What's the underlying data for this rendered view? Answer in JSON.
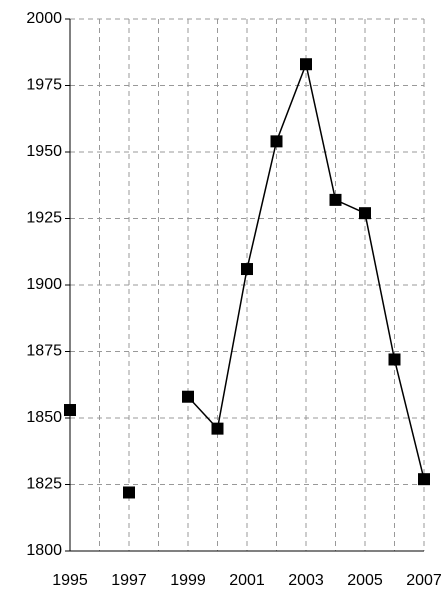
{
  "chart_data": {
    "type": "line",
    "x": [
      1995,
      1996,
      1997,
      1998,
      1999,
      2000,
      2001,
      2002,
      2003,
      2004,
      2005,
      2006,
      2007
    ],
    "series": [
      {
        "color": "#000000",
        "values": [
          1853,
          null,
          1822,
          null,
          1858,
          1846,
          1906,
          1954,
          1983,
          1932,
          1927,
          1872,
          1827
        ]
      }
    ],
    "xlim": [
      1995,
      2007
    ],
    "xticks": [
      1995,
      1997,
      1999,
      2001,
      2003,
      2005,
      2007
    ],
    "xminorticks": [
      1996,
      1998,
      2000,
      2002,
      2004,
      2006
    ],
    "ylim": [
      1800,
      2000
    ],
    "yticks": [
      1800,
      1825,
      1850,
      1875,
      1900,
      1925,
      1950,
      1975,
      2000
    ],
    "grid": true
  }
}
